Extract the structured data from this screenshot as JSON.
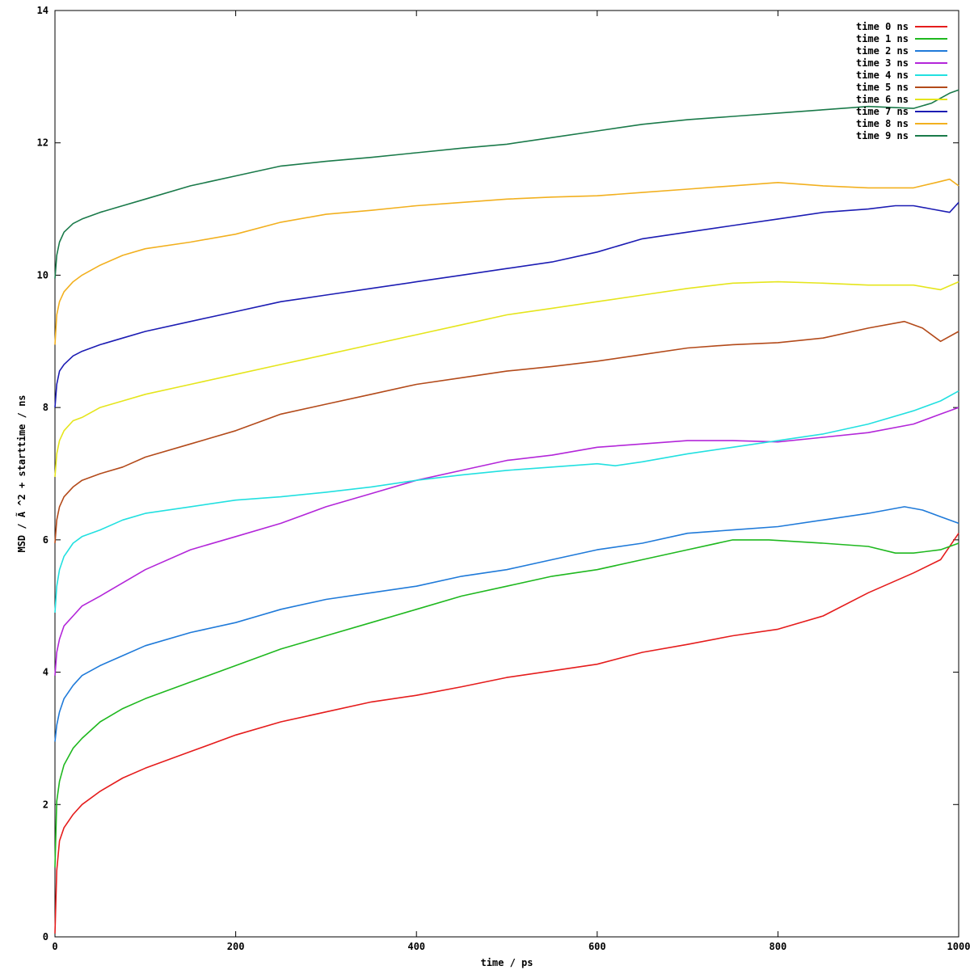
{
  "chart_data": {
    "type": "line",
    "title": "",
    "xlabel": "time / ps",
    "ylabel": "MSD / Ã ^2 + starttime / ns",
    "xlim": [
      0,
      1000
    ],
    "ylim": [
      0,
      14
    ],
    "x_ticks": [
      0,
      200,
      400,
      600,
      800,
      1000
    ],
    "y_ticks": [
      0,
      2,
      4,
      6,
      8,
      10,
      12,
      14
    ],
    "x_tick_labels": [
      "0",
      "200",
      "400",
      "600",
      "800",
      "1000"
    ],
    "y_tick_labels": [
      "0",
      "2",
      "4",
      "6",
      "8",
      "10",
      "12",
      "14"
    ],
    "grid": false,
    "legend_position": "top-right",
    "series": [
      {
        "name": "time 0 ns",
        "color": "#e51c1c",
        "x": [
          0,
          2,
          5,
          10,
          20,
          30,
          50,
          75,
          100,
          150,
          200,
          250,
          300,
          350,
          400,
          450,
          500,
          550,
          600,
          650,
          700,
          750,
          800,
          850,
          900,
          950,
          980,
          1000
        ],
        "y": [
          0.05,
          1.0,
          1.45,
          1.65,
          1.85,
          2.0,
          2.2,
          2.4,
          2.55,
          2.8,
          3.05,
          3.25,
          3.4,
          3.55,
          3.65,
          3.78,
          3.92,
          4.02,
          4.12,
          4.3,
          4.42,
          4.55,
          4.65,
          4.85,
          5.2,
          5.5,
          5.7,
          6.1
        ]
      },
      {
        "name": "time 1 ns",
        "color": "#1fb81f",
        "x": [
          0,
          2,
          5,
          10,
          20,
          30,
          50,
          75,
          100,
          150,
          200,
          250,
          300,
          350,
          400,
          450,
          500,
          550,
          600,
          650,
          700,
          750,
          790,
          850,
          900,
          930,
          950,
          980,
          1000
        ],
        "y": [
          1.05,
          2.05,
          2.35,
          2.6,
          2.85,
          3.0,
          3.25,
          3.45,
          3.6,
          3.85,
          4.1,
          4.35,
          4.55,
          4.75,
          4.95,
          5.15,
          5.3,
          5.45,
          5.55,
          5.7,
          5.85,
          6.0,
          6.0,
          5.95,
          5.9,
          5.8,
          5.8,
          5.85,
          5.95
        ]
      },
      {
        "name": "time 2 ns",
        "color": "#1f7ad9",
        "x": [
          0,
          2,
          5,
          10,
          20,
          30,
          50,
          75,
          100,
          150,
          200,
          250,
          300,
          350,
          400,
          450,
          500,
          550,
          600,
          650,
          700,
          750,
          800,
          850,
          900,
          940,
          960,
          980,
          1000
        ],
        "y": [
          2.95,
          3.2,
          3.4,
          3.6,
          3.8,
          3.95,
          4.1,
          4.25,
          4.4,
          4.6,
          4.75,
          4.95,
          5.1,
          5.2,
          5.3,
          5.45,
          5.55,
          5.7,
          5.85,
          5.95,
          6.1,
          6.15,
          6.2,
          6.3,
          6.4,
          6.5,
          6.45,
          6.35,
          6.25
        ]
      },
      {
        "name": "time 3 ns",
        "color": "#b326d9",
        "x": [
          0,
          2,
          5,
          10,
          20,
          30,
          50,
          75,
          100,
          150,
          200,
          250,
          300,
          350,
          400,
          450,
          500,
          550,
          600,
          650,
          700,
          750,
          800,
          850,
          900,
          950,
          980,
          1000
        ],
        "y": [
          3.95,
          4.3,
          4.5,
          4.7,
          4.85,
          5.0,
          5.15,
          5.35,
          5.55,
          5.85,
          6.05,
          6.25,
          6.5,
          6.7,
          6.9,
          7.05,
          7.2,
          7.28,
          7.4,
          7.45,
          7.5,
          7.5,
          7.48,
          7.55,
          7.62,
          7.75,
          7.9,
          8.0
        ]
      },
      {
        "name": "time 4 ns",
        "color": "#22e0e0",
        "x": [
          0,
          2,
          5,
          10,
          20,
          30,
          50,
          75,
          100,
          150,
          200,
          250,
          300,
          350,
          400,
          450,
          500,
          550,
          600,
          620,
          650,
          700,
          750,
          800,
          850,
          900,
          950,
          980,
          1000
        ],
        "y": [
          4.9,
          5.3,
          5.55,
          5.75,
          5.95,
          6.05,
          6.15,
          6.3,
          6.4,
          6.5,
          6.6,
          6.65,
          6.72,
          6.8,
          6.9,
          6.98,
          7.05,
          7.1,
          7.15,
          7.12,
          7.18,
          7.3,
          7.4,
          7.5,
          7.6,
          7.75,
          7.95,
          8.1,
          8.25
        ]
      },
      {
        "name": "time 5 ns",
        "color": "#b34a1a",
        "x": [
          0,
          2,
          5,
          10,
          20,
          30,
          50,
          75,
          100,
          150,
          200,
          250,
          300,
          350,
          400,
          450,
          500,
          550,
          600,
          650,
          700,
          750,
          800,
          850,
          900,
          940,
          960,
          980,
          1000
        ],
        "y": [
          5.95,
          6.3,
          6.5,
          6.65,
          6.8,
          6.9,
          7.0,
          7.1,
          7.25,
          7.45,
          7.65,
          7.9,
          8.05,
          8.2,
          8.35,
          8.45,
          8.55,
          8.62,
          8.7,
          8.8,
          8.9,
          8.95,
          8.98,
          9.05,
          9.2,
          9.3,
          9.2,
          9.0,
          9.15
        ]
      },
      {
        "name": "time 6 ns",
        "color": "#e5e51c",
        "x": [
          0,
          2,
          5,
          10,
          20,
          30,
          50,
          75,
          100,
          150,
          200,
          250,
          300,
          350,
          400,
          450,
          500,
          550,
          600,
          650,
          700,
          750,
          800,
          850,
          900,
          950,
          980,
          1000
        ],
        "y": [
          6.95,
          7.3,
          7.5,
          7.65,
          7.8,
          7.85,
          8.0,
          8.1,
          8.2,
          8.35,
          8.5,
          8.65,
          8.8,
          8.95,
          9.1,
          9.25,
          9.4,
          9.5,
          9.6,
          9.7,
          9.8,
          9.88,
          9.9,
          9.88,
          9.85,
          9.85,
          9.78,
          9.9
        ]
      },
      {
        "name": "time 7 ns",
        "color": "#1c1cb3",
        "x": [
          0,
          2,
          5,
          10,
          20,
          30,
          50,
          75,
          100,
          150,
          200,
          250,
          300,
          350,
          400,
          450,
          500,
          550,
          600,
          650,
          700,
          750,
          800,
          850,
          900,
          930,
          950,
          970,
          990,
          1000
        ],
        "y": [
          8.0,
          8.35,
          8.55,
          8.65,
          8.78,
          8.85,
          8.95,
          9.05,
          9.15,
          9.3,
          9.45,
          9.6,
          9.7,
          9.8,
          9.9,
          10.0,
          10.1,
          10.2,
          10.35,
          10.55,
          10.65,
          10.75,
          10.85,
          10.95,
          11.0,
          11.05,
          11.05,
          11.0,
          10.95,
          11.1
        ]
      },
      {
        "name": "time 8 ns",
        "color": "#f2b01f",
        "x": [
          0,
          2,
          5,
          10,
          20,
          30,
          50,
          75,
          100,
          150,
          200,
          250,
          300,
          350,
          400,
          450,
          500,
          550,
          600,
          650,
          700,
          750,
          800,
          850,
          900,
          950,
          975,
          990,
          1000
        ],
        "y": [
          8.95,
          9.4,
          9.6,
          9.75,
          9.9,
          10.0,
          10.15,
          10.3,
          10.4,
          10.5,
          10.62,
          10.8,
          10.92,
          10.98,
          11.05,
          11.1,
          11.15,
          11.18,
          11.2,
          11.25,
          11.3,
          11.35,
          11.4,
          11.35,
          11.32,
          11.32,
          11.4,
          11.45,
          11.35
        ]
      },
      {
        "name": "time 9 ns",
        "color": "#1a7a4a",
        "x": [
          0,
          2,
          5,
          10,
          20,
          30,
          50,
          75,
          100,
          150,
          200,
          250,
          300,
          350,
          400,
          450,
          500,
          550,
          600,
          650,
          700,
          750,
          800,
          850,
          900,
          950,
          970,
          990,
          1000
        ],
        "y": [
          9.95,
          10.3,
          10.5,
          10.65,
          10.78,
          10.85,
          10.95,
          11.05,
          11.15,
          11.35,
          11.5,
          11.65,
          11.72,
          11.78,
          11.85,
          11.92,
          11.98,
          12.08,
          12.18,
          12.28,
          12.35,
          12.4,
          12.45,
          12.5,
          12.55,
          12.52,
          12.6,
          12.75,
          12.8
        ]
      }
    ]
  }
}
